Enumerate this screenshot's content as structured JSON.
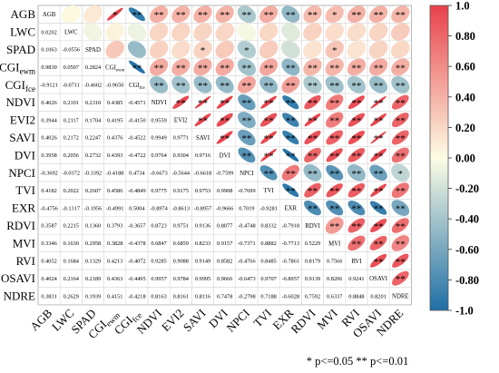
{
  "chart_data": {
    "type": "heatmap",
    "variables": [
      "AGB",
      "LWC",
      "SPAD",
      "CGIewm",
      "CGIfce",
      "NDVI",
      "EVI2",
      "SAVI",
      "DVI",
      "NPCI",
      "TVI",
      "EXR",
      "RDVI",
      "MVI",
      "RVI",
      "OSAVI",
      "NDRE"
    ],
    "row_labels": [
      {
        "base": "AGB",
        "sub": ""
      },
      {
        "base": "LWC",
        "sub": ""
      },
      {
        "base": "SPAD",
        "sub": ""
      },
      {
        "base": "CGI",
        "sub": "ewm"
      },
      {
        "base": "CGI",
        "sub": "fce"
      },
      {
        "base": "NDVI",
        "sub": ""
      },
      {
        "base": "EVI2",
        "sub": ""
      },
      {
        "base": "SAVI",
        "sub": ""
      },
      {
        "base": "DVI",
        "sub": ""
      },
      {
        "base": "NPCI",
        "sub": ""
      },
      {
        "base": "TVI",
        "sub": ""
      },
      {
        "base": "EXR",
        "sub": ""
      },
      {
        "base": "RDVI",
        "sub": ""
      },
      {
        "base": "MVI",
        "sub": ""
      },
      {
        "base": "RVI",
        "sub": ""
      },
      {
        "base": "OSAVI",
        "sub": ""
      },
      {
        "base": "NDRE",
        "sub": ""
      }
    ],
    "correlations": [
      [
        null,
        0.0202,
        0.1063,
        0.983,
        -0.9121,
        0.4026,
        0.3944,
        0.4026,
        0.3958,
        -0.3692,
        0.4182,
        -0.4756,
        0.3587,
        0.3346,
        0.4052,
        0.4024,
        0.3831
      ],
      [
        0.0202,
        null,
        -0.0556,
        0.0507,
        -0.0711,
        0.2101,
        0.2117,
        0.2172,
        0.2056,
        -0.0372,
        0.2022,
        -0.1317,
        0.2215,
        0.163,
        0.1684,
        0.2164,
        0.2629
      ],
      [
        0.1063,
        -0.0556,
        null,
        0.2824,
        -0.4602,
        0.231,
        0.1704,
        0.2247,
        0.2732,
        -0.3392,
        0.2607,
        -0.1956,
        0.136,
        0.2958,
        0.1329,
        0.2189,
        0.1939
      ],
      [
        0.983,
        0.0507,
        0.2824,
        null,
        -0.965,
        0.4385,
        0.4195,
        0.4376,
        0.4393,
        -0.4188,
        0.4586,
        -0.4991,
        0.3793,
        0.3828,
        0.4213,
        0.4363,
        0.4151
      ],
      [
        -0.9121,
        -0.0711,
        -0.4602,
        -0.965,
        null,
        -0.4571,
        -0.415,
        -0.4522,
        -0.4722,
        0.4734,
        -0.4849,
        0.5004,
        -0.3657,
        -0.4378,
        -0.4072,
        -0.4495,
        -0.4218
      ],
      [
        0.4026,
        0.2101,
        0.231,
        0.4385,
        -0.4571,
        null,
        0.9559,
        0.9949,
        0.9764,
        -0.6673,
        0.9775,
        -0.8974,
        0.8723,
        0.6847,
        0.9285,
        0.9957,
        0.8163
      ],
      [
        0.3944,
        0.2117,
        0.1704,
        0.4195,
        -0.415,
        0.9559,
        null,
        0.9771,
        0.9304,
        -0.5644,
        0.9175,
        -0.8613,
        0.9751,
        0.6859,
        0.9088,
        0.9784,
        0.8161
      ],
      [
        0.4026,
        0.2172,
        0.2247,
        0.4376,
        -0.4522,
        0.9949,
        0.9771,
        null,
        0.9716,
        -0.6618,
        0.9753,
        -0.8957,
        0.9136,
        0.8233,
        0.9149,
        0.9995,
        0.8116
      ],
      [
        0.3958,
        0.2056,
        0.2732,
        0.4393,
        -0.4722,
        0.9764,
        0.9304,
        0.9716,
        null,
        -0.7599,
        0.9908,
        -0.9666,
        0.8077,
        0.9157,
        0.8582,
        0.9666,
        0.7478
      ],
      [
        -0.3692,
        -0.0372,
        -0.3392,
        -0.4188,
        0.4734,
        -0.6673,
        -0.5644,
        -0.6618,
        -0.7599,
        null,
        -0.7699,
        0.7019,
        -0.4748,
        -0.7371,
        -0.4766,
        -0.6473,
        -0.2798
      ],
      [
        0.4182,
        0.2022,
        0.2607,
        0.4586,
        -0.4849,
        0.9775,
        0.9175,
        0.9753,
        0.9908,
        -0.7699,
        null,
        -0.9281,
        0.8332,
        0.8882,
        0.8485,
        0.9707,
        0.7188
      ],
      [
        -0.4756,
        -0.1317,
        -0.1956,
        -0.4991,
        0.5004,
        -0.8974,
        -0.8613,
        -0.8957,
        -0.9666,
        0.7019,
        -0.9281,
        null,
        -0.7918,
        -0.7713,
        -0.7861,
        -0.8957,
        -0.6028
      ],
      [
        0.3587,
        0.2215,
        0.136,
        0.3793,
        -0.3657,
        0.8723,
        0.9751,
        0.9136,
        0.8077,
        -0.4748,
        0.8332,
        -0.7918,
        null,
        0.5229,
        0.8179,
        0.9139,
        0.7592
      ],
      [
        0.3346,
        0.163,
        0.2958,
        0.3828,
        -0.4378,
        0.6847,
        0.6859,
        0.8233,
        0.9157,
        -0.7371,
        0.8882,
        -0.7713,
        0.5229,
        null,
        0.7566,
        0.8206,
        0.6337
      ],
      [
        0.4052,
        0.1684,
        0.1329,
        0.4213,
        -0.4072,
        0.9285,
        0.9088,
        0.9149,
        0.8582,
        -0.4766,
        0.8485,
        -0.7861,
        0.8179,
        0.7566,
        null,
        0.9241,
        0.8848
      ],
      [
        0.4024,
        0.2164,
        0.2189,
        0.4363,
        -0.4495,
        0.9957,
        0.9784,
        0.9995,
        0.9666,
        -0.6473,
        0.9707,
        -0.8957,
        0.9139,
        0.8206,
        0.9241,
        null,
        0.8201
      ],
      [
        0.3831,
        0.2629,
        0.1939,
        0.4151,
        -0.4218,
        0.8163,
        0.8161,
        0.8116,
        0.7478,
        -0.2798,
        0.7188,
        -0.6028,
        0.7592,
        0.6337,
        0.8848,
        0.8201,
        null
      ]
    ],
    "significance_upper": [
      [
        null,
        "",
        "",
        "*",
        "**",
        "**",
        "**",
        "**",
        "**",
        "**",
        "**",
        "**",
        "**",
        "*",
        "**",
        "**",
        "**"
      ],
      [
        null,
        null,
        "",
        "",
        "",
        "",
        "",
        "",
        "",
        "",
        "",
        "",
        "",
        "",
        "",
        "",
        ""
      ],
      [
        null,
        null,
        null,
        "",
        "",
        "",
        "",
        "*",
        "",
        "*",
        "",
        "",
        "",
        "*",
        "",
        "",
        ""
      ],
      [
        null,
        null,
        null,
        null,
        "**",
        "**",
        "**",
        "**",
        "**",
        "**",
        "**",
        "**",
        "**",
        "**",
        "**",
        "**",
        "**"
      ],
      [
        null,
        null,
        null,
        null,
        null,
        "**",
        "**",
        "**",
        "**",
        "**",
        "**",
        "**",
        "**",
        "**",
        "**",
        "**",
        "**"
      ],
      [
        null,
        null,
        null,
        null,
        null,
        null,
        "**",
        "**",
        "**",
        "**",
        "**",
        "**",
        "**",
        "**",
        "**",
        "**",
        "**"
      ],
      [
        null,
        null,
        null,
        null,
        null,
        null,
        null,
        "**",
        "**",
        "**",
        "**",
        "**",
        "**",
        "**",
        "**",
        "**",
        "**"
      ],
      [
        null,
        null,
        null,
        null,
        null,
        null,
        null,
        null,
        "**",
        "**",
        "**",
        "**",
        "**",
        "**",
        "**",
        "**",
        "**"
      ],
      [
        null,
        null,
        null,
        null,
        null,
        null,
        null,
        null,
        null,
        "**",
        "**",
        "**",
        "**",
        "**",
        "**",
        "**",
        "**"
      ],
      [
        null,
        null,
        null,
        null,
        null,
        null,
        null,
        null,
        null,
        null,
        "**",
        "**",
        "**",
        "**",
        "**",
        "**",
        "*"
      ],
      [
        null,
        null,
        null,
        null,
        null,
        null,
        null,
        null,
        null,
        null,
        null,
        "**",
        "**",
        "**",
        "**",
        "**",
        "**"
      ],
      [
        null,
        null,
        null,
        null,
        null,
        null,
        null,
        null,
        null,
        null,
        null,
        null,
        "**",
        "**",
        "**",
        "**",
        "**"
      ],
      [
        null,
        null,
        null,
        null,
        null,
        null,
        null,
        null,
        null,
        null,
        null,
        null,
        null,
        "**",
        "**",
        "**",
        "**"
      ],
      [
        null,
        null,
        null,
        null,
        null,
        null,
        null,
        null,
        null,
        null,
        null,
        null,
        null,
        null,
        "**",
        "**",
        "**"
      ],
      [
        null,
        null,
        null,
        null,
        null,
        null,
        null,
        null,
        null,
        null,
        null,
        null,
        null,
        null,
        null,
        "**",
        "**"
      ],
      [
        null,
        null,
        null,
        null,
        null,
        null,
        null,
        null,
        null,
        null,
        null,
        null,
        null,
        null,
        null,
        null,
        "**"
      ],
      [
        null,
        null,
        null,
        null,
        null,
        null,
        null,
        null,
        null,
        null,
        null,
        null,
        null,
        null,
        null,
        null,
        null
      ]
    ],
    "colorbar": {
      "range": [
        -1.0,
        1.0
      ],
      "ticks": [
        "1.0",
        "0.80",
        "0.60",
        "0.40",
        "0.20",
        "0.00",
        "-0.20",
        "-0.40",
        "-0.60",
        "-0.80",
        "-1.0"
      ],
      "colors": {
        "positive": "#e8414b",
        "zero": "#fdfde4",
        "negative": "#1f6fa6"
      }
    },
    "legend_text": "* p<=0.05 ** p<=0.01"
  }
}
